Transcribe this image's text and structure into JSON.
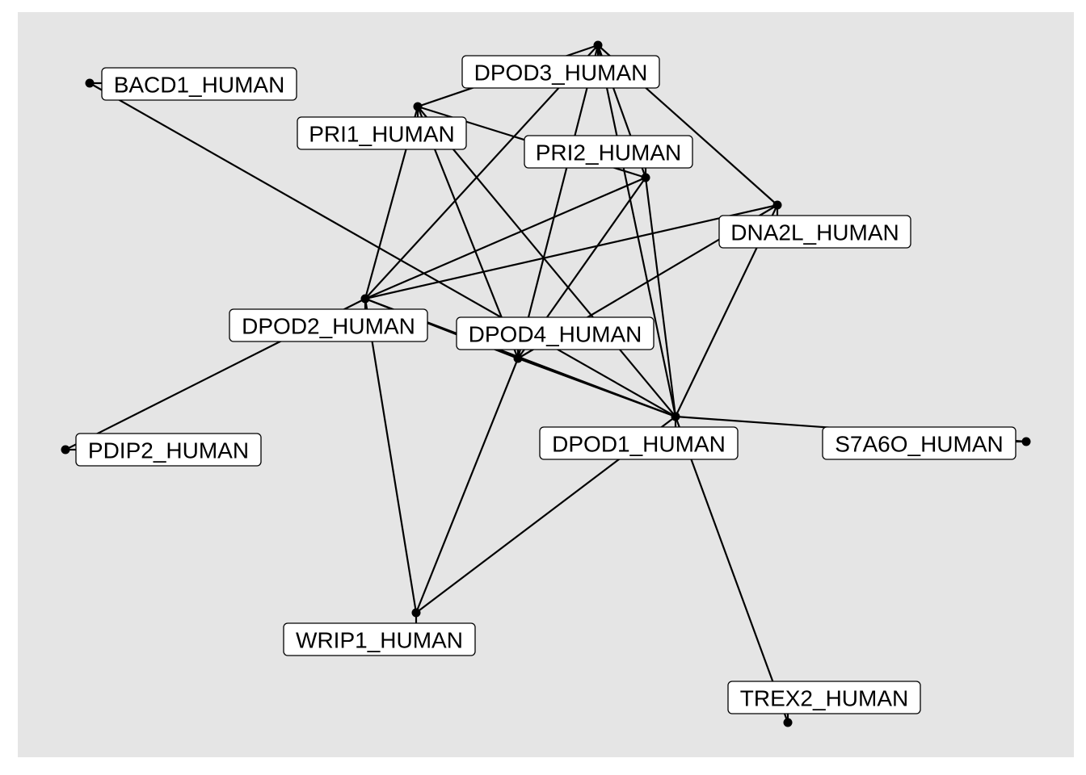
{
  "nodes": [
    {
      "id": "BACD1_HUMAN",
      "label": "BACD1_HUMAN"
    },
    {
      "id": "DPOD3_HUMAN",
      "label": "DPOD3_HUMAN"
    },
    {
      "id": "PRI1_HUMAN",
      "label": "PRI1_HUMAN"
    },
    {
      "id": "PRI2_HUMAN",
      "label": "PRI2_HUMAN"
    },
    {
      "id": "DNA2L_HUMAN",
      "label": "DNA2L_HUMAN"
    },
    {
      "id": "DPOD2_HUMAN",
      "label": "DPOD2_HUMAN"
    },
    {
      "id": "DPOD4_HUMAN",
      "label": "DPOD4_HUMAN"
    },
    {
      "id": "DPOD1_HUMAN",
      "label": "DPOD1_HUMAN"
    },
    {
      "id": "S7A6O_HUMAN",
      "label": "S7A6O_HUMAN"
    },
    {
      "id": "PDIP2_HUMAN",
      "label": "PDIP2_HUMAN"
    },
    {
      "id": "WRIP1_HUMAN",
      "label": "WRIP1_HUMAN"
    },
    {
      "id": "TREX2_HUMAN",
      "label": "TREX2_HUMAN"
    }
  ],
  "edges": [
    [
      "BACD1_HUMAN",
      "DPOD1_HUMAN"
    ],
    [
      "DPOD3_HUMAN",
      "PRI1_HUMAN"
    ],
    [
      "DPOD3_HUMAN",
      "DPOD2_HUMAN"
    ],
    [
      "DPOD3_HUMAN",
      "DPOD4_HUMAN"
    ],
    [
      "DPOD3_HUMAN",
      "DPOD1_HUMAN"
    ],
    [
      "DPOD3_HUMAN",
      "PRI2_HUMAN"
    ],
    [
      "DPOD3_HUMAN",
      "DNA2L_HUMAN"
    ],
    [
      "PRI1_HUMAN",
      "PRI2_HUMAN"
    ],
    [
      "PRI1_HUMAN",
      "DPOD2_HUMAN"
    ],
    [
      "PRI1_HUMAN",
      "DPOD4_HUMAN"
    ],
    [
      "PRI1_HUMAN",
      "DPOD1_HUMAN"
    ],
    [
      "PRI2_HUMAN",
      "DPOD2_HUMAN"
    ],
    [
      "PRI2_HUMAN",
      "DPOD4_HUMAN"
    ],
    [
      "PRI2_HUMAN",
      "DPOD1_HUMAN"
    ],
    [
      "DNA2L_HUMAN",
      "DPOD2_HUMAN"
    ],
    [
      "DNA2L_HUMAN",
      "DPOD4_HUMAN"
    ],
    [
      "DNA2L_HUMAN",
      "DPOD1_HUMAN"
    ],
    [
      "DPOD2_HUMAN",
      "DPOD4_HUMAN"
    ],
    [
      "DPOD2_HUMAN",
      "DPOD1_HUMAN"
    ],
    [
      "DPOD2_HUMAN",
      "PDIP2_HUMAN"
    ],
    [
      "DPOD2_HUMAN",
      "WRIP1_HUMAN"
    ],
    [
      "DPOD4_HUMAN",
      "DPOD1_HUMAN"
    ],
    [
      "DPOD4_HUMAN",
      "WRIP1_HUMAN"
    ],
    [
      "DPOD1_HUMAN",
      "WRIP1_HUMAN"
    ],
    [
      "DPOD1_HUMAN",
      "S7A6O_HUMAN"
    ],
    [
      "DPOD1_HUMAN",
      "TREX2_HUMAN"
    ]
  ],
  "colors": {
    "panel": "#e5e5e5",
    "edge": "#000000",
    "label_fill": "#ffffff"
  }
}
